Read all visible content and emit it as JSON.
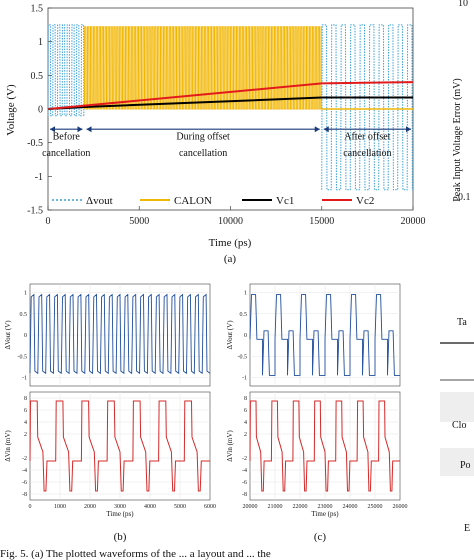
{
  "chart_data": [
    {
      "id": "a",
      "type": "line",
      "xlabel": "Time (ps)",
      "ylabel": "Voltage (V)",
      "xlim": [
        0,
        20000
      ],
      "ylim": [
        -1.5,
        1.5
      ],
      "xticks": [
        "0",
        "5000",
        "10000",
        "15000",
        "20000"
      ],
      "yticks": [
        "1.5",
        "1",
        "0.5",
        "0",
        "-0.5",
        "-1",
        "-1.5"
      ],
      "series": [
        {
          "name": "Δvout",
          "color": "#3aa0d8",
          "style": "dotted",
          "description_points": [
            [
              0,
              1.2
            ],
            [
              2000,
              1.2
            ],
            [
              15000,
              1.2
            ],
            [
              20000,
              1.2
            ]
          ],
          "segments": [
            {
              "from": 0,
              "to": 2000,
              "amplitude": [
                -0.1,
                1.25
              ]
            },
            {
              "from": 15000,
              "to": 20000,
              "amplitude": [
                -1.2,
                1.25
              ]
            }
          ]
        },
        {
          "name": "CALON",
          "color": "#f2b705",
          "style": "solid",
          "segments": [
            {
              "from": 2000,
              "to": 15000,
              "amplitude": [
                0,
                1.22
              ]
            }
          ]
        },
        {
          "name": "Vc1",
          "color": "#000000",
          "style": "solid",
          "x": [
            0,
            2000,
            15000,
            20000
          ],
          "y": [
            0,
            0.03,
            0.17,
            0.17
          ]
        },
        {
          "name": "Vc2",
          "color": "#e31a1c",
          "style": "solid",
          "x": [
            0,
            2000,
            15000,
            20000
          ],
          "y": [
            0,
            0.05,
            0.38,
            0.4
          ]
        }
      ],
      "annotations": [
        {
          "text": "Before",
          "x": 1000,
          "y": -0.45
        },
        {
          "text": "cancellation",
          "x": 1000,
          "y": -0.7
        },
        {
          "text": "During offset",
          "x": 8500,
          "y": -0.45
        },
        {
          "text": "cancellation",
          "x": 8500,
          "y": -0.7
        },
        {
          "text": "After offset",
          "x": 17500,
          "y": -0.45
        },
        {
          "text": "cancellation",
          "x": 17500,
          "y": -0.7
        }
      ],
      "caption": "(a)"
    },
    {
      "id": "b",
      "type": "line",
      "panels": [
        {
          "ylabel": "ΔVout (V)",
          "yticks": [
            "1",
            "0.5",
            "0",
            "-0.5",
            "-1"
          ],
          "ylim": [
            -1.2,
            1.2
          ],
          "series": [
            {
              "name": "ΔVout",
              "color": "#1f4e9c",
              "period": 260,
              "low": -0.9,
              "high": 0.95
            }
          ]
        },
        {
          "ylabel": "ΔVin (mV)",
          "yticks": [
            "8",
            "6",
            "4",
            "2",
            "-2",
            "-4",
            "-6",
            "-8"
          ],
          "ylim": [
            -9,
            9
          ],
          "series": [
            {
              "name": "ΔVin",
              "color": "#d42a2a",
              "levels": [
                7.5,
                1.5,
                -1.0,
                -2.5,
                -7.5
              ]
            }
          ]
        }
      ],
      "xlabel": "Time (ps)",
      "xlim": [
        0,
        6000
      ],
      "xticks": [
        "0",
        "1000",
        "2000",
        "3000",
        "4000",
        "5000",
        "6000"
      ],
      "caption": "(b)"
    },
    {
      "id": "c",
      "type": "line",
      "panels": [
        {
          "ylabel": "ΔVout (V)",
          "yticks": [
            "1",
            "0.5",
            "0",
            "-0.5",
            "-1"
          ],
          "ylim": [
            -1.2,
            1.2
          ],
          "series": [
            {
              "name": "ΔVout",
              "color": "#1f4e9c"
            }
          ]
        },
        {
          "ylabel": "ΔVin (mV)",
          "yticks": [
            "8",
            "6",
            "4",
            "2",
            "-2",
            "-4",
            "-6",
            "-8"
          ],
          "ylim": [
            -9,
            9
          ],
          "series": [
            {
              "name": "ΔVin",
              "color": "#d42a2a"
            }
          ]
        }
      ],
      "xlabel": "Time (ps)",
      "xlim": [
        20000,
        26000
      ],
      "xticks": [
        "20000",
        "21000",
        "22000",
        "23000",
        "24000",
        "25000",
        "26000"
      ],
      "caption": "(c)"
    }
  ],
  "right_fragment": {
    "ylabel_partial": "Peak Input Voltage Error (mV)",
    "tick_top": "10",
    "tick_bottom": "0.1",
    "table_fragments": [
      "Ta",
      "Clo",
      "Po",
      "E"
    ]
  },
  "footer_fragment": "Fig. 5. (a) The plotted waveforms of the ... a layout and ... the"
}
